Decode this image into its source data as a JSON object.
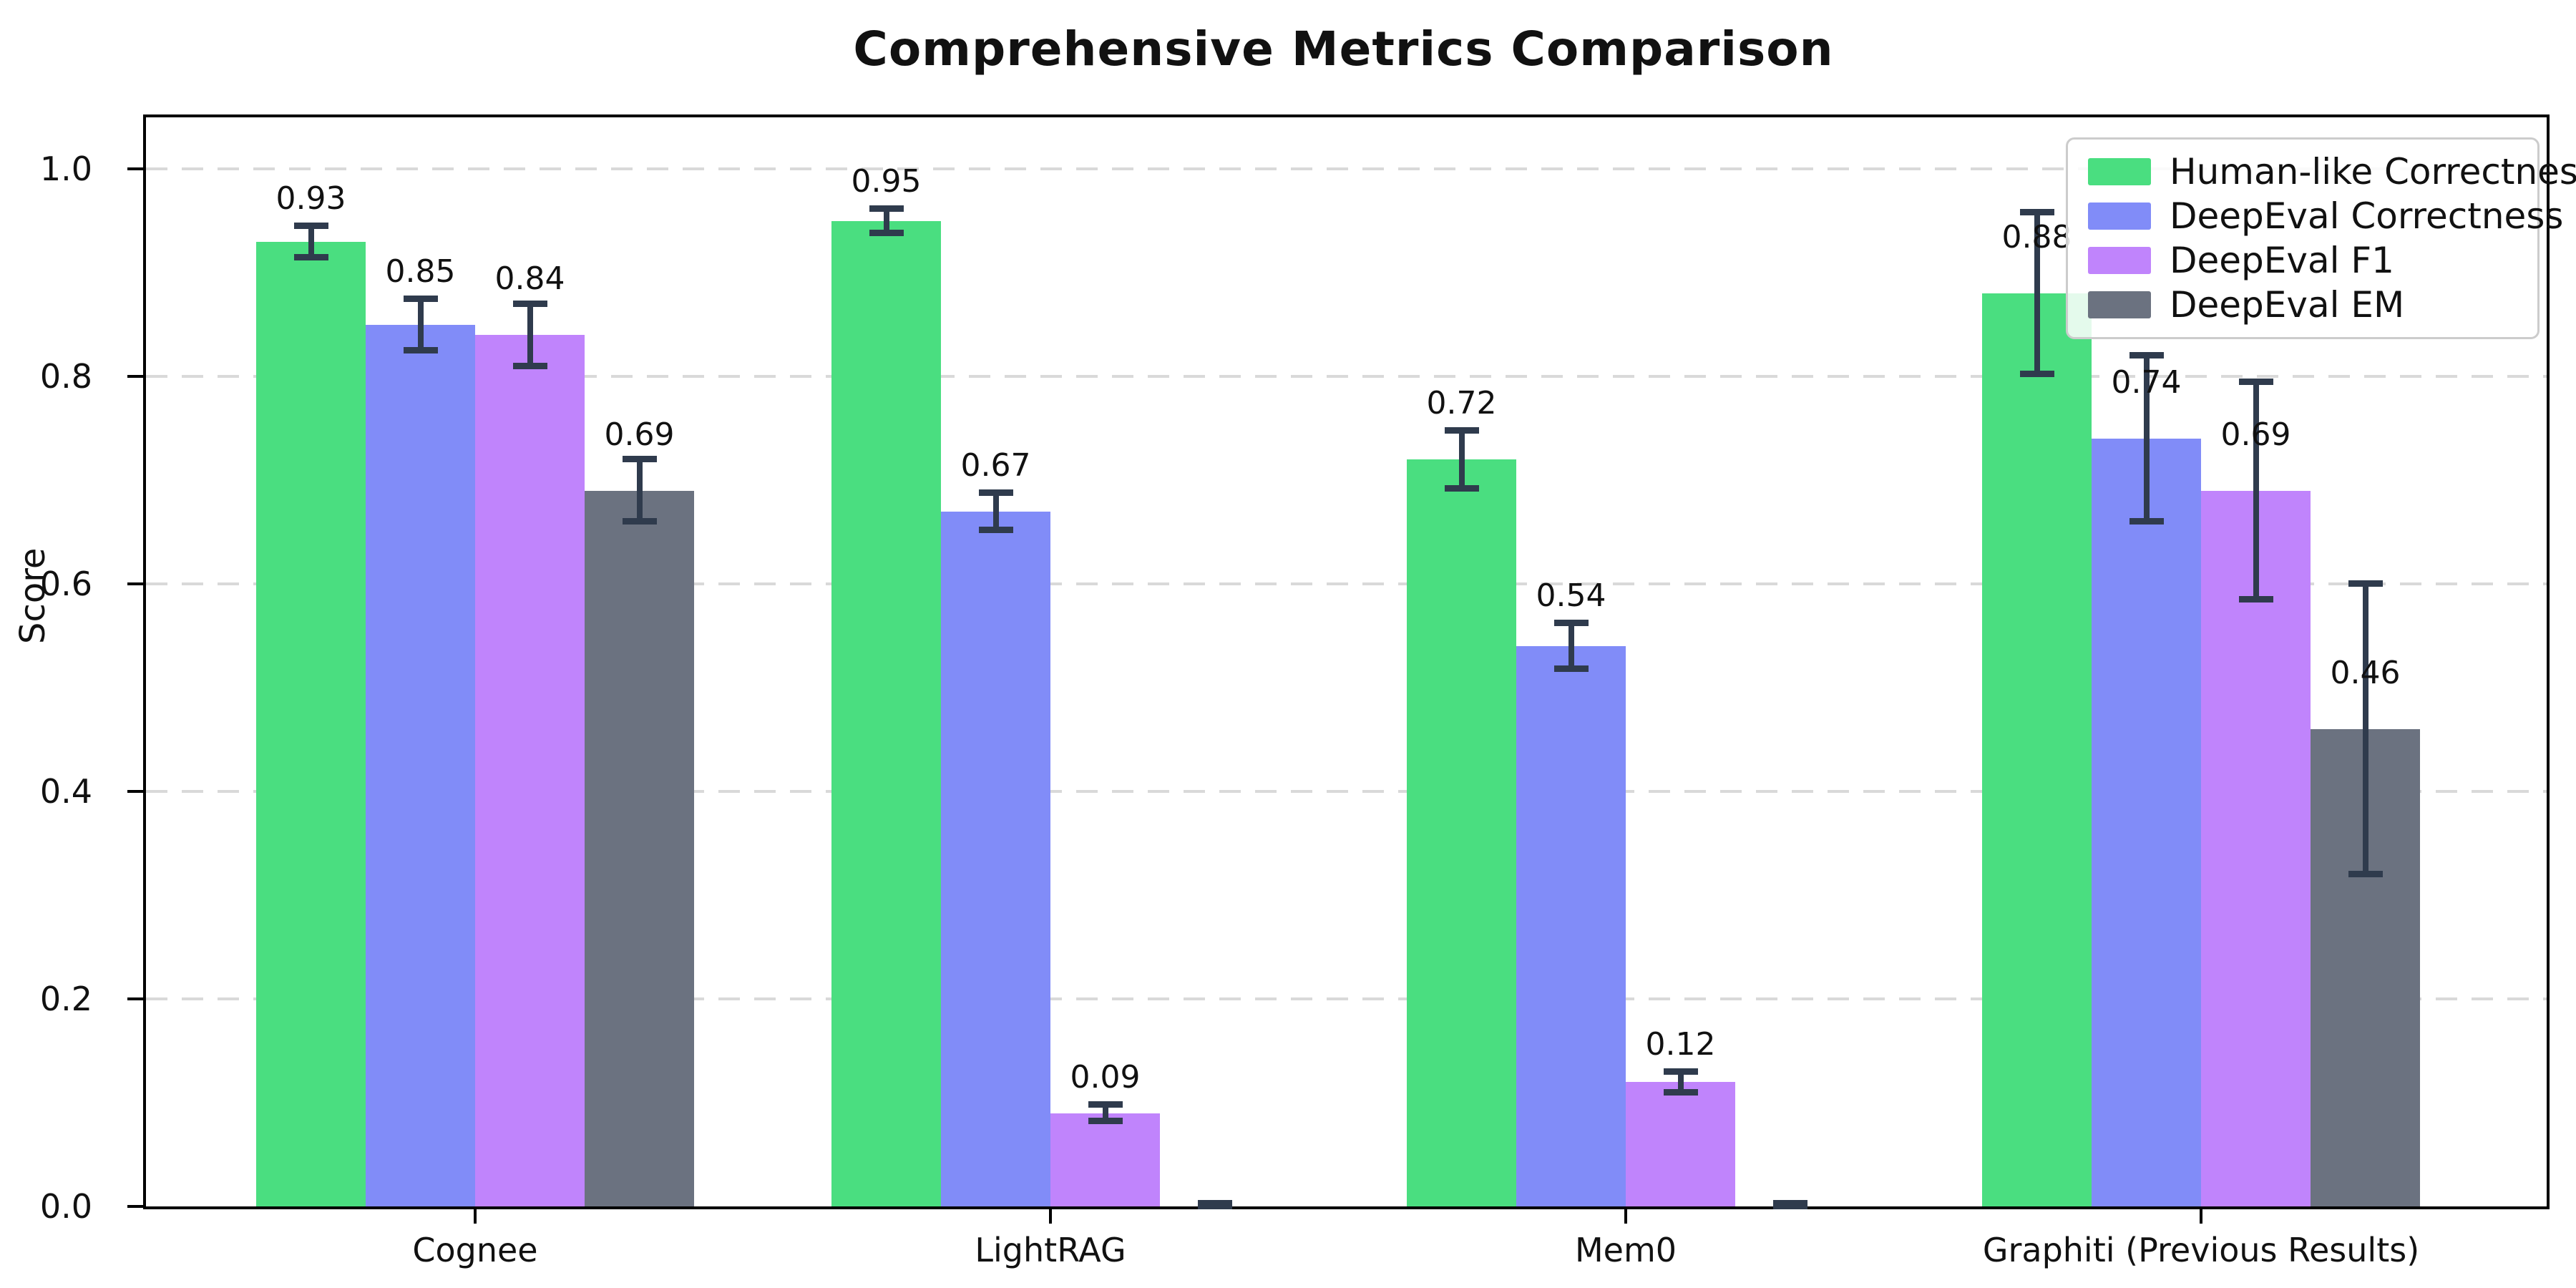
{
  "chart_data": {
    "type": "bar",
    "title": "Comprehensive Metrics Comparison",
    "ylabel": "Score",
    "xlabel": "",
    "categories": [
      "Cognee",
      "LightRAG",
      "Mem0",
      "Graphiti (Previous Results)"
    ],
    "series": [
      {
        "name": "Human-like Correctness",
        "color": "#4ade80",
        "values": [
          0.93,
          0.95,
          0.72,
          0.88
        ],
        "errors": [
          0.015,
          0.012,
          0.028,
          0.078
        ],
        "labels": [
          "0.93",
          "0.95",
          "0.72",
          "0.88"
        ]
      },
      {
        "name": "DeepEval Correctness",
        "color": "#818cf8",
        "values": [
          0.85,
          0.67,
          0.54,
          0.74
        ],
        "errors": [
          0.025,
          0.018,
          0.022,
          0.08
        ],
        "labels": [
          "0.85",
          "0.67",
          "0.54",
          "0.74"
        ]
      },
      {
        "name": "DeepEval F1",
        "color": "#c084fc",
        "values": [
          0.84,
          0.09,
          0.12,
          0.69
        ],
        "errors": [
          0.03,
          0.008,
          0.01,
          0.105
        ],
        "labels": [
          "0.84",
          "0.09",
          "0.12",
          "0.69"
        ]
      },
      {
        "name": "DeepEval EM",
        "color": "#6b7280",
        "values": [
          0.69,
          0.0,
          0.0,
          0.46
        ],
        "errors": [
          0.03,
          0.003,
          0.003,
          0.14
        ],
        "labels": [
          "0.69",
          "",
          "",
          "0.46"
        ]
      }
    ],
    "ylim": [
      0,
      1.05
    ],
    "y_ticks": [
      0.0,
      0.2,
      0.4,
      0.6,
      0.8,
      1.0
    ],
    "y_tick_labels": [
      "0.0",
      "0.2",
      "0.4",
      "0.6",
      "0.8",
      "1.0"
    ],
    "grid": "horizontal dashed",
    "legend_position": "upper right",
    "error_bar_color": "#2f3b4d"
  }
}
